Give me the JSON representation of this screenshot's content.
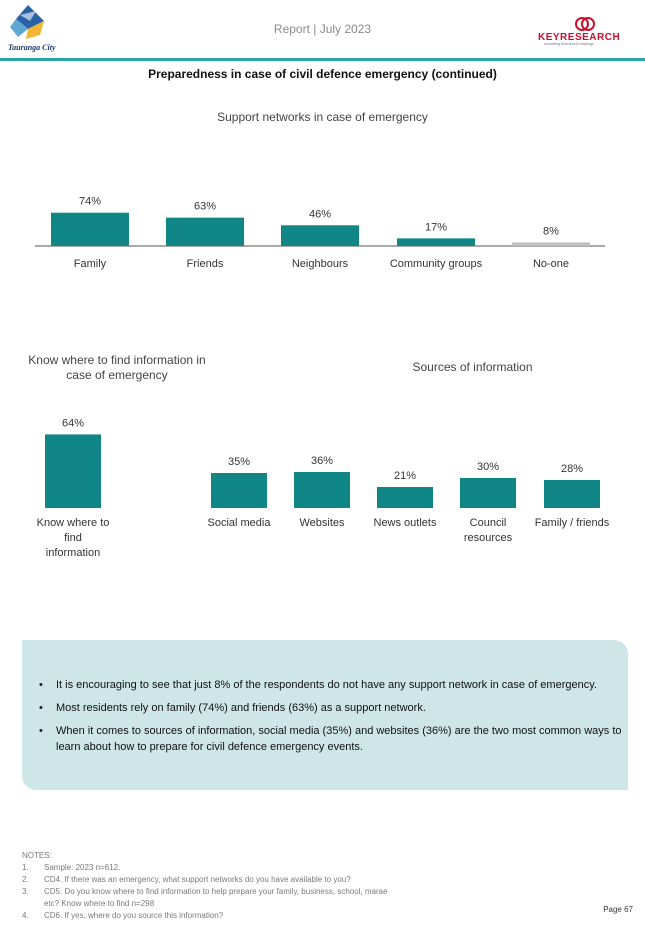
{
  "header": {
    "logo_left_text": "Tauranga City",
    "report_title": "Report | July 2023",
    "logo_right_text": "KEYRESEARCH",
    "logo_right_tagline": "Innovating Business Knowledge",
    "accent_color": "#2aa5a5"
  },
  "section_title": "Preparedness in case of civil defence emergency (continued)",
  "chart_data": [
    {
      "type": "bar",
      "title": "Support networks in case of emergency",
      "categories": [
        "Family",
        "Friends",
        "Neighbours",
        "Community groups",
        "No-one"
      ],
      "values": [
        74,
        63,
        46,
        17,
        8
      ],
      "value_labels": [
        "74%",
        "63%",
        "46%",
        "17%",
        "8%"
      ],
      "colors": [
        "#108786",
        "#108786",
        "#108786",
        "#108786",
        "#c0c0c0"
      ],
      "ylim": [
        0,
        100
      ]
    },
    {
      "type": "bar",
      "title": "Know where to find information in case of emergency",
      "categories": [
        "Know where to find information"
      ],
      "values": [
        64
      ],
      "value_labels": [
        "64%"
      ],
      "colors": [
        "#108786"
      ],
      "ylim": [
        0,
        100
      ]
    },
    {
      "type": "bar",
      "title": "Sources of information",
      "categories": [
        "Social media",
        "Websites",
        "News outlets",
        "Council resources",
        "Family / friends"
      ],
      "values": [
        35,
        36,
        21,
        30,
        28
      ],
      "value_labels": [
        "35%",
        "36%",
        "21%",
        "30%",
        "28%"
      ],
      "colors": [
        "#108786",
        "#108786",
        "#108786",
        "#108786",
        "#108786"
      ],
      "ylim": [
        0,
        100
      ]
    }
  ],
  "summary": {
    "bullets": [
      "It is encouraging to see that just 8% of the respondents do not have any support network in case of emergency.",
      "Most residents rely on family (74%) and friends (63%) as a support network.",
      "When it comes to sources of information, social media (35%) and websites (36%) are the two most common ways to learn about how to prepare for civil defence emergency events."
    ]
  },
  "notes": {
    "heading": "NOTES:",
    "items": [
      {
        "num": "1.",
        "text": "Sample: 2023 n=612."
      },
      {
        "num": "2.",
        "text": "CD4. If there was an emergency, what support networks do you have available to you?"
      },
      {
        "num": "3.",
        "text": "CD5. Do you know where to find information to help prepare your family, business, school, marae etc? Know where to find n=298"
      },
      {
        "num": "4.",
        "text": "CD6. If yes, where do you source this information?"
      }
    ]
  },
  "page_number": "Page 67"
}
